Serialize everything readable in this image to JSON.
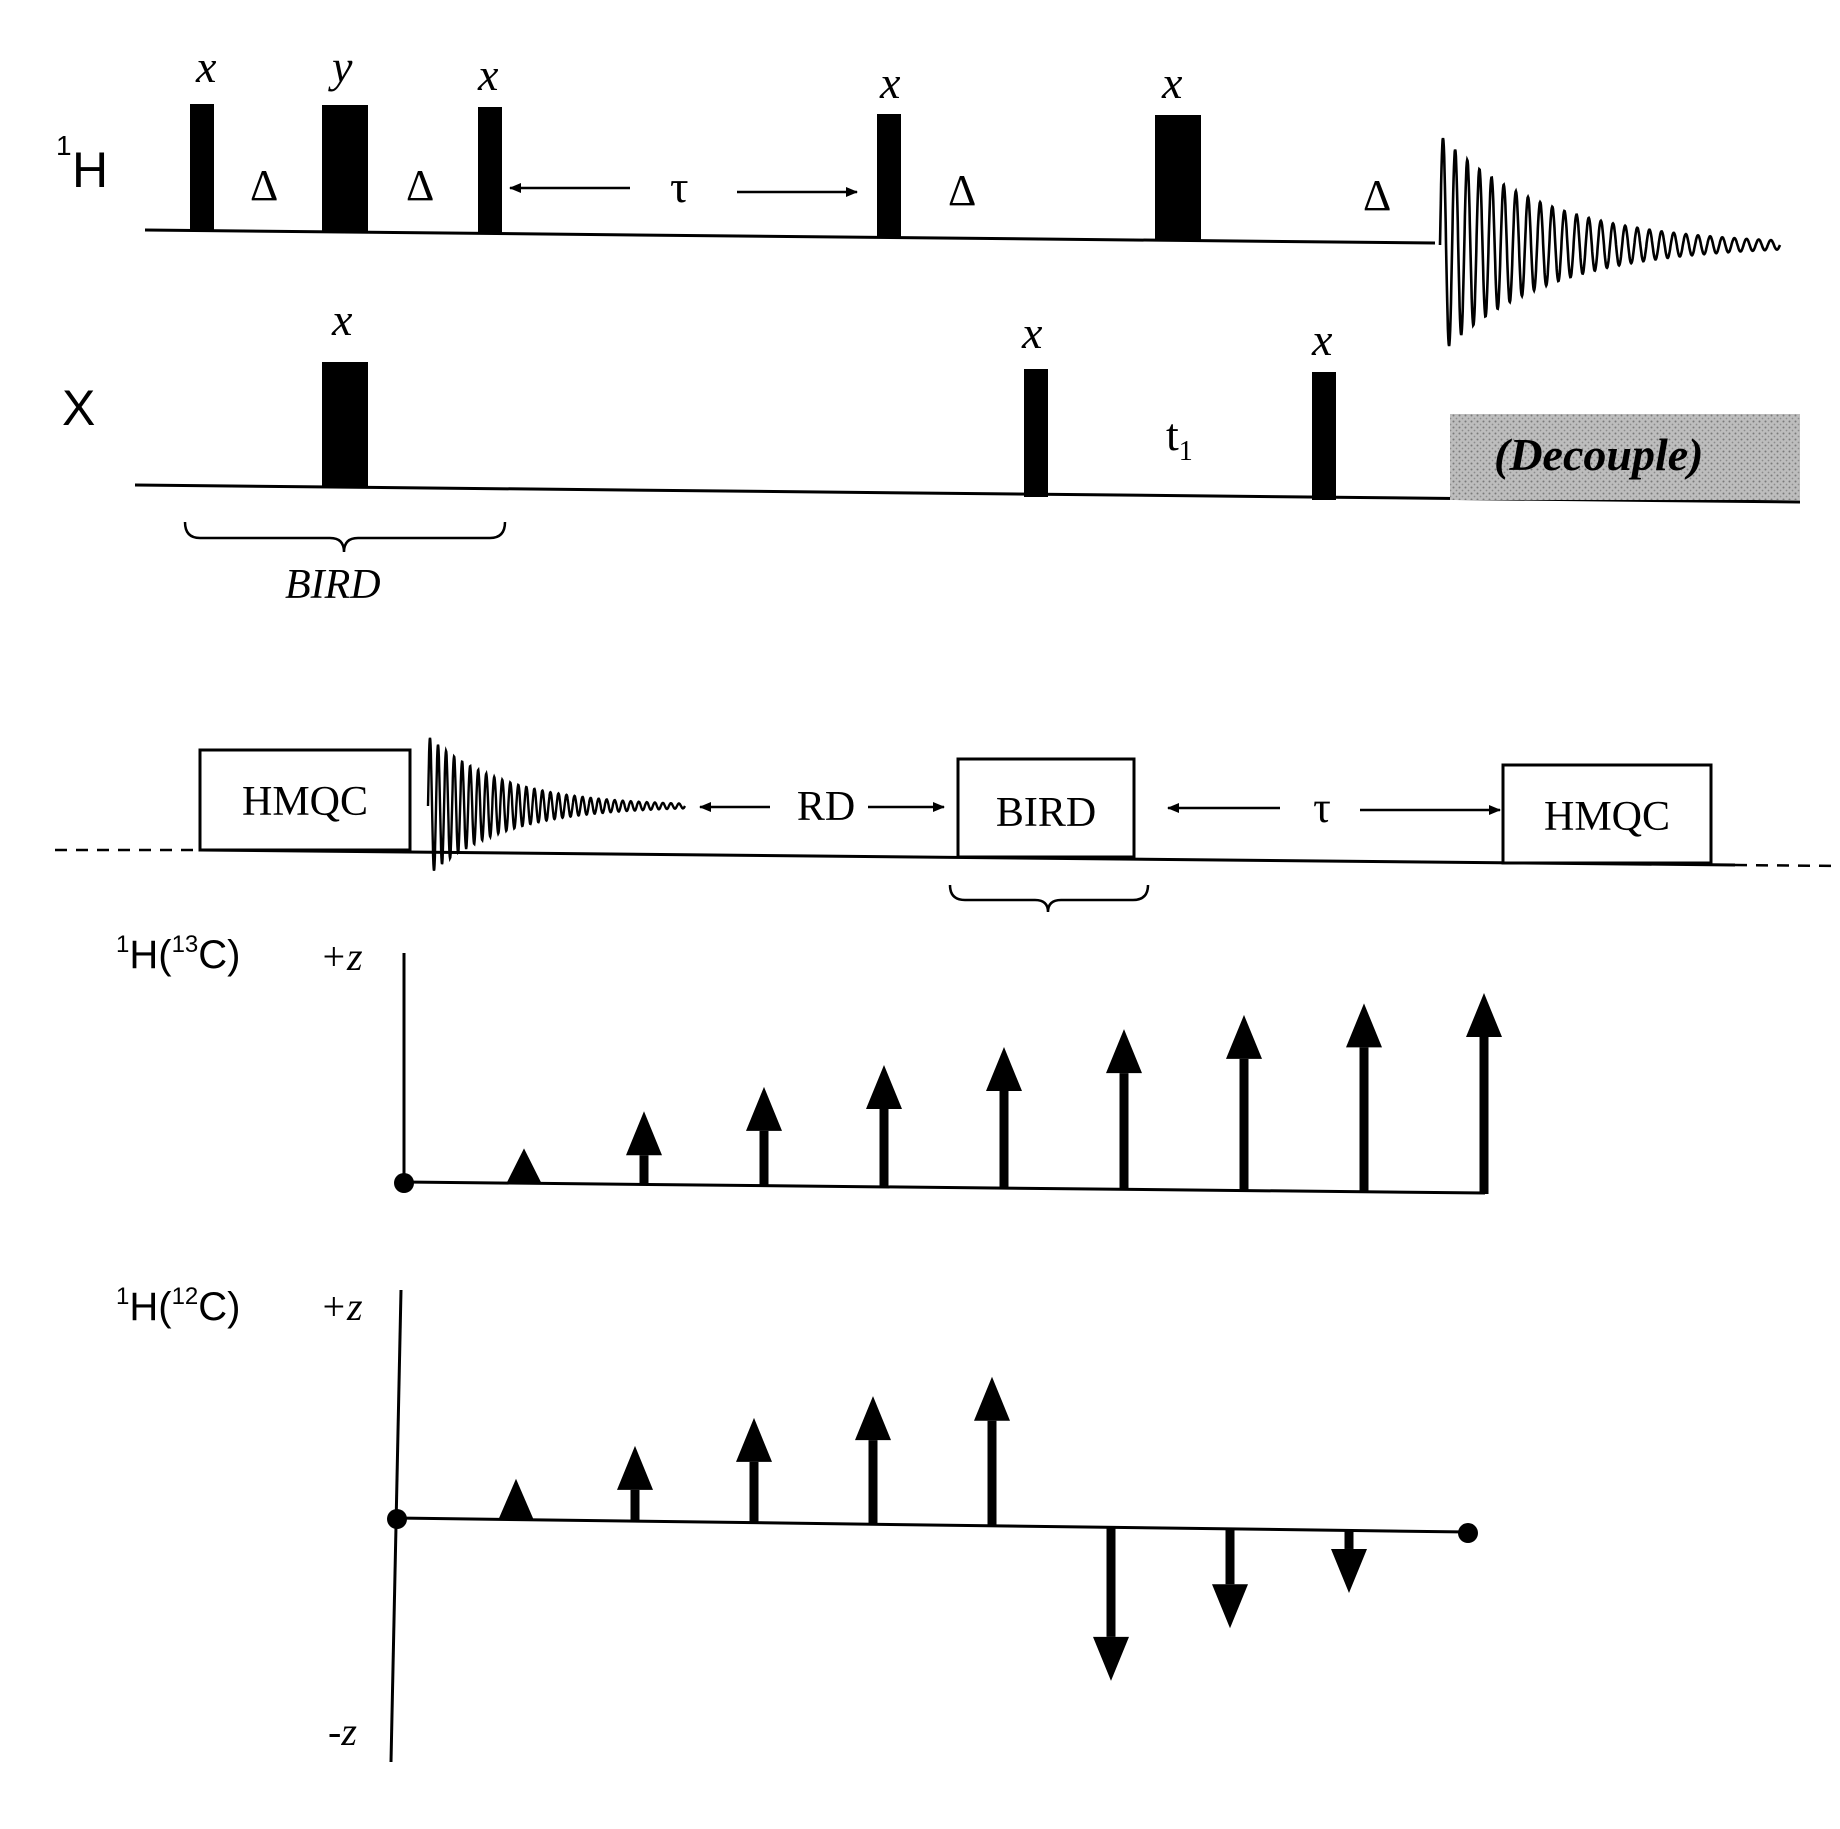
{
  "sequence": {
    "channel_h": "H",
    "channel_h_sup": "1",
    "channel_x": "X",
    "phase_x": "x",
    "phase_y": "y",
    "delta": "Δ",
    "tau": "τ",
    "t1": "t",
    "t1_sub": "1",
    "decouple": "(Decouple)",
    "bird": "BIRD"
  },
  "scheme": {
    "hmqc_left": "HMQC",
    "rd": "RD",
    "bird": "BIRD",
    "tau": "τ",
    "hmqc_right": "HMQC"
  },
  "panel_13c": {
    "label_pre": "H(",
    "label_sup_h": "1",
    "label_sup_c": "13",
    "label_post": "C)",
    "axis_top": "+z"
  },
  "panel_12c": {
    "label_pre": "H(",
    "label_sup_h": "1",
    "label_sup_c": "12",
    "label_post": "C)",
    "axis_top": "+z",
    "axis_bottom": "-z"
  },
  "chart_data": [
    {
      "type": "bar",
      "series": [
        {
          "values": [
            0,
            0.28,
            0.58,
            0.78,
            0.96,
            1.11,
            1.26,
            1.38,
            1.48,
            1.57
          ]
        }
      ],
      "ylabel": "+z"
    },
    {
      "type": "bar",
      "series": [
        {
          "values": [
            0,
            0.34,
            0.62,
            0.86,
            1.05,
            1.22,
            -1.24,
            -0.8,
            -0.5,
            0
          ]
        }
      ],
      "ylabel": "+z",
      "ylim_labels": [
        "-z",
        "+z"
      ]
    }
  ]
}
